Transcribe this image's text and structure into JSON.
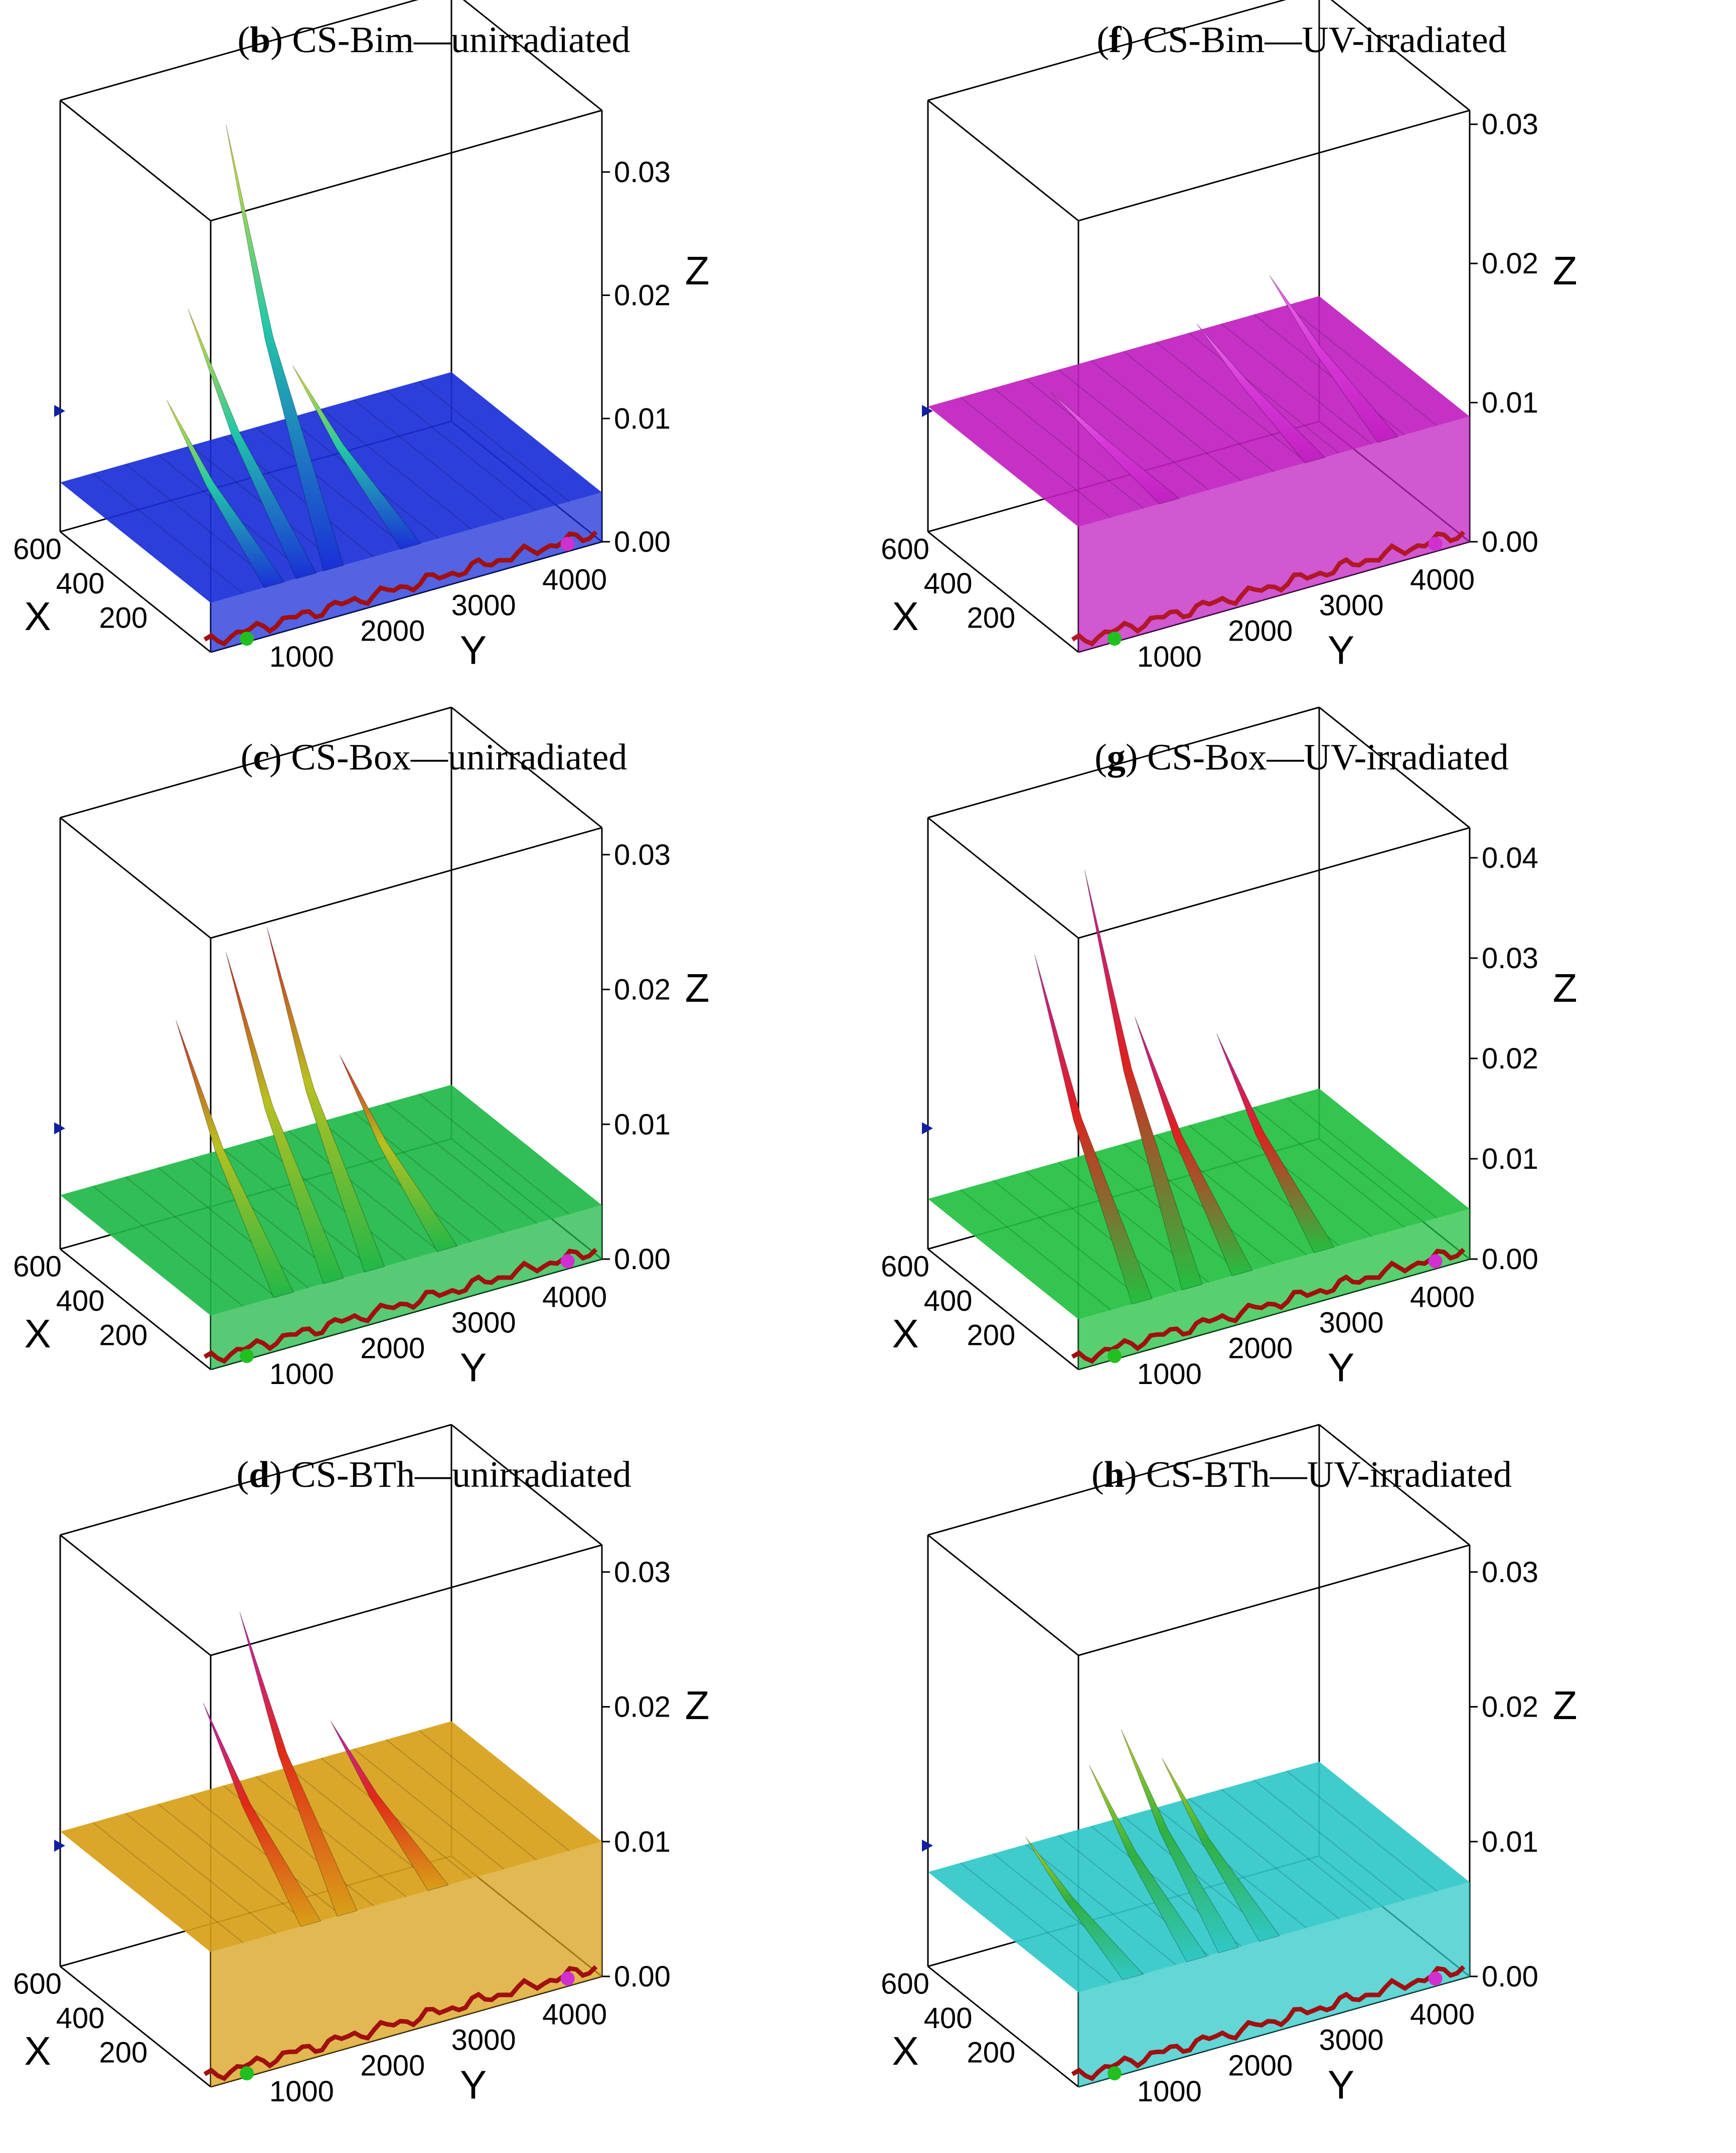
{
  "figure": {
    "panels": [
      {
        "id": "b",
        "letter": "b",
        "title_text": " CS-Bim—unirradiated",
        "surface_color": "#1a2fd8",
        "peak_color": "#e8e020",
        "mid_color": "#22c8a8",
        "edge_color": "#a01010"
      },
      {
        "id": "f",
        "letter": "f",
        "title_text": " CS-Bim—UV-irradiated",
        "surface_color": "#c020c0",
        "peak_color": "#f070f0",
        "mid_color": "#d838d8",
        "edge_color": "#b01828"
      },
      {
        "id": "c",
        "letter": "c",
        "title_text": " CS-Box—unirradiated",
        "surface_color": "#20b848",
        "peak_color": "#d02020",
        "mid_color": "#b8c020",
        "edge_color": "#a01010"
      },
      {
        "id": "g",
        "letter": "g",
        "title_text": " CS-Box—UV-irradiated",
        "surface_color": "#22c040",
        "peak_color": "#c020a0",
        "mid_color": "#e02020",
        "edge_color": "#a01010"
      },
      {
        "id": "d",
        "letter": "d",
        "title_text": " CS-BTh—unirradiated",
        "surface_color": "#d8a018",
        "peak_color": "#c020c0",
        "mid_color": "#e02818",
        "edge_color": "#a01010"
      },
      {
        "id": "h",
        "letter": "h",
        "title_text": " CS-BTh—UV-irradiated",
        "surface_color": "#30c8c8",
        "peak_color": "#c0d020",
        "mid_color": "#30b040",
        "edge_color": "#a01010"
      }
    ]
  },
  "chart_data": [
    {
      "type": "surface3d",
      "panel": "b",
      "title": "(b) CS-Bim—unirradiated",
      "xlabel": "X",
      "ylabel": "Y",
      "zlabel": "Z",
      "x_ticks": [
        "200",
        "400",
        "600"
      ],
      "y_ticks": [
        "1000",
        "2000",
        "3000",
        "4000"
      ],
      "z_ticks": [
        "0.00",
        "0.01",
        "0.02",
        "0.03"
      ],
      "xlim": [
        0,
        700
      ],
      "ylim": [
        0,
        4300
      ],
      "zlim": [
        0,
        0.035
      ],
      "peaks": [
        {
          "x": 500,
          "y": 700,
          "z": 0.012
        },
        {
          "x": 550,
          "y": 1050,
          "z": 0.018
        },
        {
          "x": 500,
          "y": 1350,
          "z": 0.033
        },
        {
          "x": 550,
          "y": 2200,
          "z": 0.011
        }
      ],
      "baseline": 0.004
    },
    {
      "type": "surface3d",
      "panel": "f",
      "title": "(f) CS-Bim—UV-irradiated",
      "xlabel": "X",
      "ylabel": "Y",
      "zlabel": "Z",
      "x_ticks": [
        "200",
        "400",
        "600"
      ],
      "y_ticks": [
        "1000",
        "2000",
        "3000",
        "4000"
      ],
      "z_ticks": [
        "0.00",
        "0.01",
        "0.02",
        "0.03"
      ],
      "xlim": [
        0,
        700
      ],
      "ylim": [
        0,
        4300
      ],
      "zlim": [
        0,
        0.031
      ],
      "peaks": [
        {
          "x": 550,
          "y": 1000,
          "z": 0.01
        },
        {
          "x": 550,
          "y": 2600,
          "z": 0.012
        },
        {
          "x": 550,
          "y": 3400,
          "z": 0.014
        }
      ],
      "baseline": 0.009
    },
    {
      "type": "surface3d",
      "panel": "c",
      "title": "(c) CS-Box—unirradiated",
      "xlabel": "X",
      "ylabel": "Y",
      "zlabel": "Z",
      "x_ticks": [
        "200",
        "400",
        "600"
      ],
      "y_ticks": [
        "1000",
        "2000",
        "3000",
        "4000"
      ],
      "z_ticks": [
        "0.00",
        "0.01",
        "0.02",
        "0.03"
      ],
      "xlim": [
        0,
        700
      ],
      "ylim": [
        0,
        4300
      ],
      "zlim": [
        0,
        0.032
      ],
      "peaks": [
        {
          "x": 500,
          "y": 800,
          "z": 0.018
        },
        {
          "x": 500,
          "y": 1350,
          "z": 0.022
        },
        {
          "x": 500,
          "y": 1800,
          "z": 0.023
        },
        {
          "x": 500,
          "y": 2600,
          "z": 0.012
        }
      ],
      "baseline": 0.004
    },
    {
      "type": "surface3d",
      "panel": "g",
      "title": "(g) CS-Box—UV-irradiated",
      "xlabel": "X",
      "ylabel": "Y",
      "zlabel": "Z",
      "x_ticks": [
        "200",
        "400",
        "600"
      ],
      "y_ticks": [
        "1000",
        "2000",
        "3000",
        "4000"
      ],
      "z_ticks": [
        "0.00",
        "0.01",
        "0.02",
        "0.03",
        "0.04"
      ],
      "xlim": [
        0,
        700
      ],
      "ylim": [
        0,
        4300
      ],
      "zlim": [
        0,
        0.043
      ],
      "peaks": [
        {
          "x": 500,
          "y": 700,
          "z": 0.031
        },
        {
          "x": 500,
          "y": 1250,
          "z": 0.038
        },
        {
          "x": 500,
          "y": 1800,
          "z": 0.022
        },
        {
          "x": 500,
          "y": 2700,
          "z": 0.018
        }
      ],
      "baseline": 0.005
    },
    {
      "type": "surface3d",
      "panel": "d",
      "title": "(d) CS-BTh—unirradiated",
      "xlabel": "X",
      "ylabel": "Y",
      "zlabel": "Z",
      "x_ticks": [
        "200",
        "400",
        "600"
      ],
      "y_ticks": [
        "1000",
        "2000",
        "3000",
        "4000"
      ],
      "z_ticks": [
        "0.00",
        "0.01",
        "0.02",
        "0.03"
      ],
      "xlim": [
        0,
        700
      ],
      "ylim": [
        0,
        4300
      ],
      "zlim": [
        0,
        0.032
      ],
      "peaks": [
        {
          "x": 500,
          "y": 1100,
          "z": 0.02
        },
        {
          "x": 500,
          "y": 1500,
          "z": 0.026
        },
        {
          "x": 500,
          "y": 2500,
          "z": 0.016
        }
      ],
      "baseline": 0.01
    },
    {
      "type": "surface3d",
      "panel": "h",
      "title": "(h) CS-BTh—UV-irradiated",
      "xlabel": "X",
      "ylabel": "Y",
      "zlabel": "Z",
      "x_ticks": [
        "200",
        "400",
        "600"
      ],
      "y_ticks": [
        "1000",
        "2000",
        "3000",
        "4000"
      ],
      "z_ticks": [
        "0.00",
        "0.01",
        "0.02",
        "0.03"
      ],
      "xlim": [
        0,
        700
      ],
      "ylim": [
        0,
        4300
      ],
      "zlim": [
        0,
        0.032
      ],
      "peaks": [
        {
          "x": 500,
          "y": 600,
          "z": 0.011
        },
        {
          "x": 500,
          "y": 1300,
          "z": 0.015
        },
        {
          "x": 500,
          "y": 1650,
          "z": 0.017
        },
        {
          "x": 500,
          "y": 2100,
          "z": 0.014
        }
      ],
      "baseline": 0.007
    }
  ]
}
